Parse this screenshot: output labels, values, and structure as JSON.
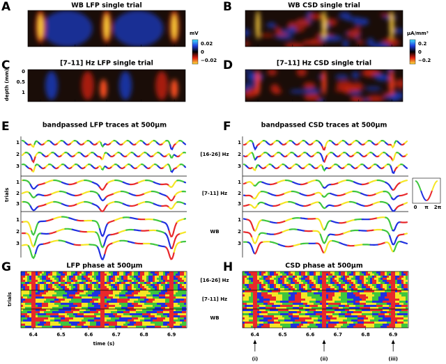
{
  "panels": [
    {
      "letter": "A",
      "title": "WB LFP single trial"
    },
    {
      "letter": "B",
      "title": "WB CSD single trial"
    },
    {
      "letter": "C",
      "title": "[7–11] Hz LFP single trial"
    },
    {
      "letter": "D",
      "title": "[7–11] Hz CSD single trial"
    },
    {
      "letter": "E",
      "title": "bandpassed LFP traces at 500μm"
    },
    {
      "letter": "F",
      "title": "bandpassed CSD traces at 500μm"
    },
    {
      "letter": "G",
      "title": "LFP phase at 500μm"
    },
    {
      "letter": "H",
      "title": "CSD phase at 500μm"
    }
  ],
  "colorbars": [
    {
      "unit": "mV",
      "ticks": [
        "0.02",
        "0",
        "−0.02"
      ]
    },
    {
      "unit": "μA/mm³",
      "ticks": [
        "0.2",
        "0",
        "−0.2"
      ]
    }
  ],
  "depth_axis": {
    "label": "depth (mm)",
    "ticks": [
      "0",
      "0.5",
      "1"
    ]
  },
  "bands": [
    "[16-26] Hz",
    "[7-11] Hz",
    "WB"
  ],
  "trial_numbers": [
    "1",
    "2",
    "3"
  ],
  "trials_label": "trials",
  "phase_ticks": [
    "0",
    "π",
    "2π"
  ],
  "time_axis": {
    "label": "time (s)",
    "ticks": [
      "6.4",
      "6.5",
      "6.6",
      "6.7",
      "6.8",
      "6.9"
    ]
  },
  "events": [
    "(i)",
    "(ii)",
    "(iii)"
  ]
}
